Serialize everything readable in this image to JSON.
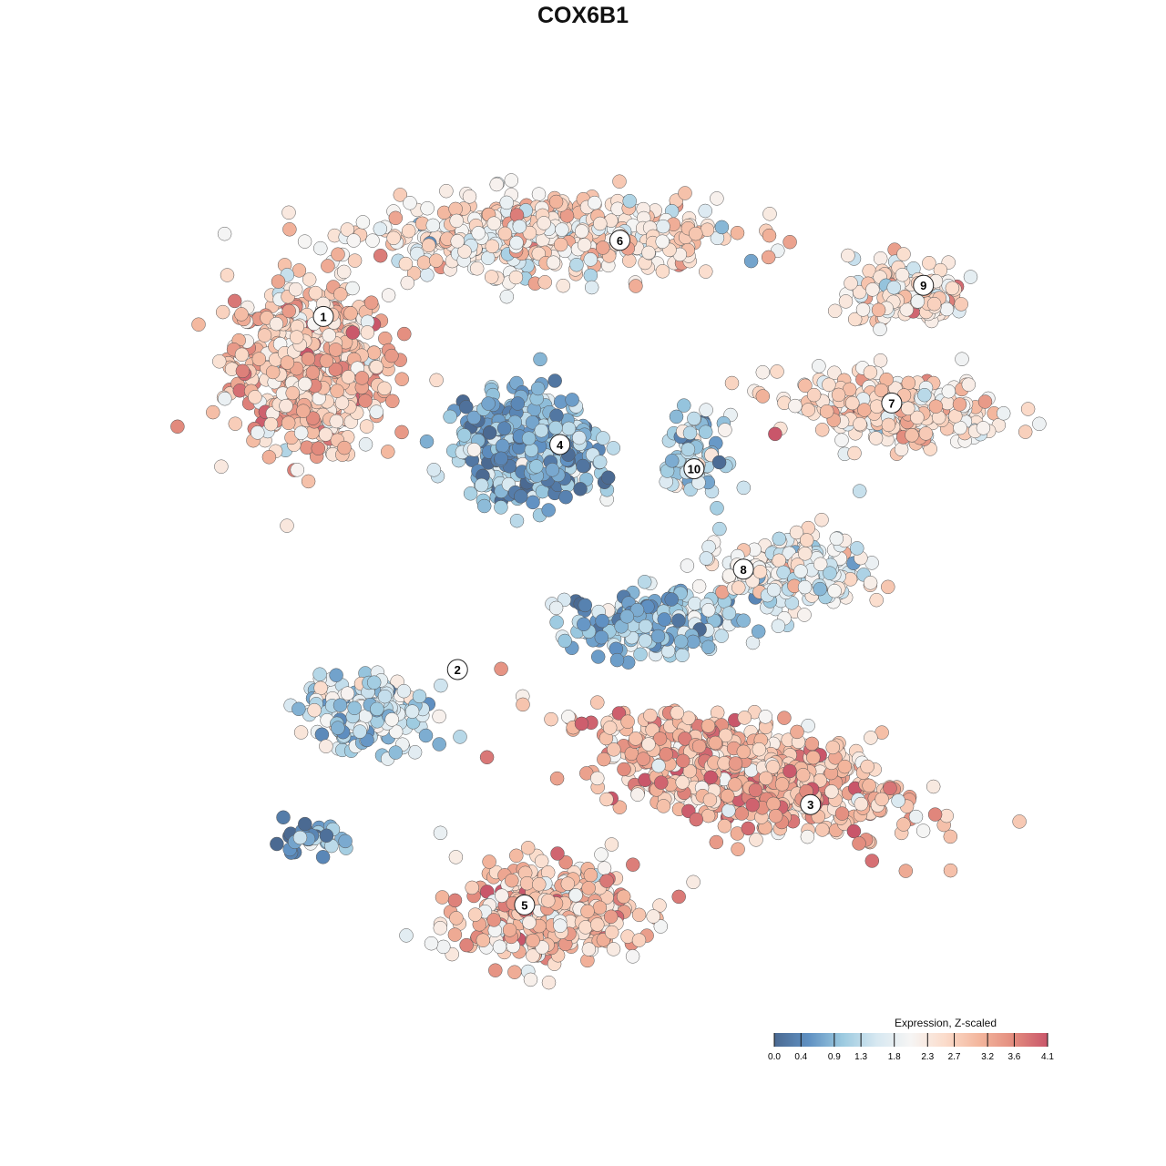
{
  "chart_data": {
    "type": "scatter",
    "title": "COX6B1",
    "xlabel": "",
    "ylabel": "",
    "xlim": [
      -12,
      12
    ],
    "ylim": [
      -12.5,
      12.5
    ],
    "grid": false,
    "legend": {
      "title": "Expression, Z-scaled",
      "placement": "bottom-right",
      "ticks": [
        0.0,
        0.4,
        0.9,
        1.3,
        1.8,
        2.3,
        2.7,
        3.2,
        3.6,
        4.1
      ],
      "tick_labels": [
        "0.0",
        "0.4",
        "0.9",
        "1.3",
        "1.8",
        "2.3",
        "2.7",
        "3.2",
        "3.6",
        "4.1"
      ],
      "range": [
        0.0,
        4.1
      ],
      "colors": [
        "#4b6a92",
        "#5f90c2",
        "#9ccae0",
        "#d7e8f1",
        "#f6f5f4",
        "#fbdccb",
        "#f3b69d",
        "#e38c7e",
        "#c9566a"
      ]
    },
    "clusters": [
      {
        "label": "1",
        "center": [
          -8.4,
          6.3
        ],
        "spread": [
          2.0,
          2.1
        ],
        "rotation": 0,
        "n": 600,
        "mean_expression": 2.8
      },
      {
        "label": "6",
        "center": [
          -1.7,
          10.0
        ],
        "spread": [
          4.4,
          1.0
        ],
        "rotation": 0,
        "n": 500,
        "mean_expression": 2.3
      },
      {
        "label": "9",
        "center": [
          8.6,
          8.4
        ],
        "spread": [
          1.5,
          0.9
        ],
        "rotation": 0,
        "n": 150,
        "mean_expression": 2.4
      },
      {
        "label": "7",
        "center": [
          8.1,
          5.0
        ],
        "spread": [
          2.8,
          0.9
        ],
        "rotation": -5,
        "n": 250,
        "mean_expression": 2.5
      },
      {
        "label": "4",
        "center": [
          -2.2,
          3.9
        ],
        "spread": [
          1.7,
          1.3
        ],
        "rotation": 0,
        "n": 500,
        "mean_expression": 0.8
      },
      {
        "label": "10",
        "center": [
          2.5,
          3.7
        ],
        "spread": [
          0.8,
          1.0
        ],
        "rotation": 0,
        "n": 80,
        "mean_expression": 1.2
      },
      {
        "label": "8",
        "center": [
          5.3,
          0.3
        ],
        "spread": [
          1.8,
          1.0
        ],
        "rotation": 0,
        "n": 250,
        "mean_expression": 1.9
      },
      {
        "label": "",
        "center": [
          1.4,
          -1.1
        ],
        "spread": [
          2.2,
          0.8
        ],
        "rotation": 0,
        "n": 200,
        "mean_expression": 1.0
      },
      {
        "label": "2",
        "center": [
          -6.8,
          -3.7
        ],
        "spread": [
          1.6,
          1.0
        ],
        "rotation": 0,
        "n": 200,
        "mean_expression": 1.4
      },
      {
        "label": "",
        "center": [
          -8.4,
          -7.4
        ],
        "spread": [
          0.9,
          0.4
        ],
        "rotation": 0,
        "n": 40,
        "mean_expression": 0.4
      },
      {
        "label": "3",
        "center": [
          4.0,
          -5.5
        ],
        "spread": [
          4.0,
          1.3
        ],
        "rotation": -12,
        "n": 700,
        "mean_expression": 3.0
      },
      {
        "label": "5",
        "center": [
          -1.7,
          -9.5
        ],
        "spread": [
          2.3,
          1.3
        ],
        "rotation": 0,
        "n": 400,
        "mean_expression": 2.8
      }
    ],
    "label_positions": [
      {
        "label": "1",
        "xy": [
          -8.0,
          7.7
        ]
      },
      {
        "label": "6",
        "xy": [
          0.4,
          9.9
        ]
      },
      {
        "label": "9",
        "xy": [
          9.0,
          8.6
        ]
      },
      {
        "label": "7",
        "xy": [
          8.1,
          5.2
        ]
      },
      {
        "label": "4",
        "xy": [
          -1.3,
          4.0
        ]
      },
      {
        "label": "10",
        "xy": [
          2.5,
          3.3
        ]
      },
      {
        "label": "8",
        "xy": [
          3.9,
          0.4
        ]
      },
      {
        "label": "2",
        "xy": [
          -4.2,
          -2.5
        ]
      },
      {
        "label": "3",
        "xy": [
          5.8,
          -6.4
        ]
      },
      {
        "label": "5",
        "xy": [
          -2.3,
          -9.3
        ]
      }
    ]
  }
}
